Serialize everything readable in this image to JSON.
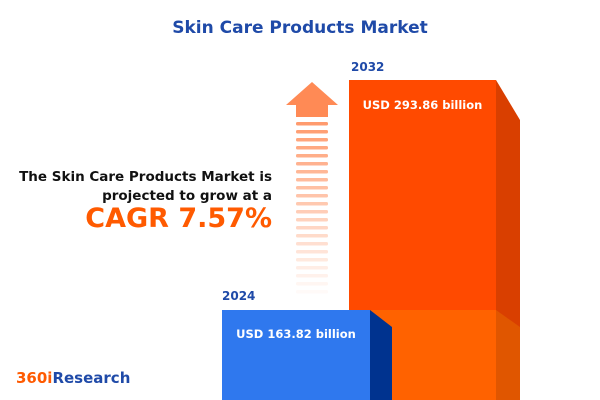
{
  "title": "Skin Care Products Market",
  "description": "The Skin Care Products Market is projected to grow at a",
  "cagr_text": "CAGR 7.57%",
  "logo": {
    "prefix": "360i",
    "suffix": "Research"
  },
  "colors": {
    "title": "#1f4aa8",
    "accent": "#ff5a00",
    "bar_2024": "#2f78ee",
    "bar_2032": "#ff4a00",
    "arrow": "#ff8a55"
  },
  "chart_data": {
    "type": "bar",
    "categories": [
      "2024",
      "2032"
    ],
    "values": [
      163.82,
      293.86
    ],
    "unit": "USD billion",
    "data_labels": [
      "USD 163.82 billion",
      "USD 293.86 billion"
    ],
    "cagr_percent": 7.57
  }
}
